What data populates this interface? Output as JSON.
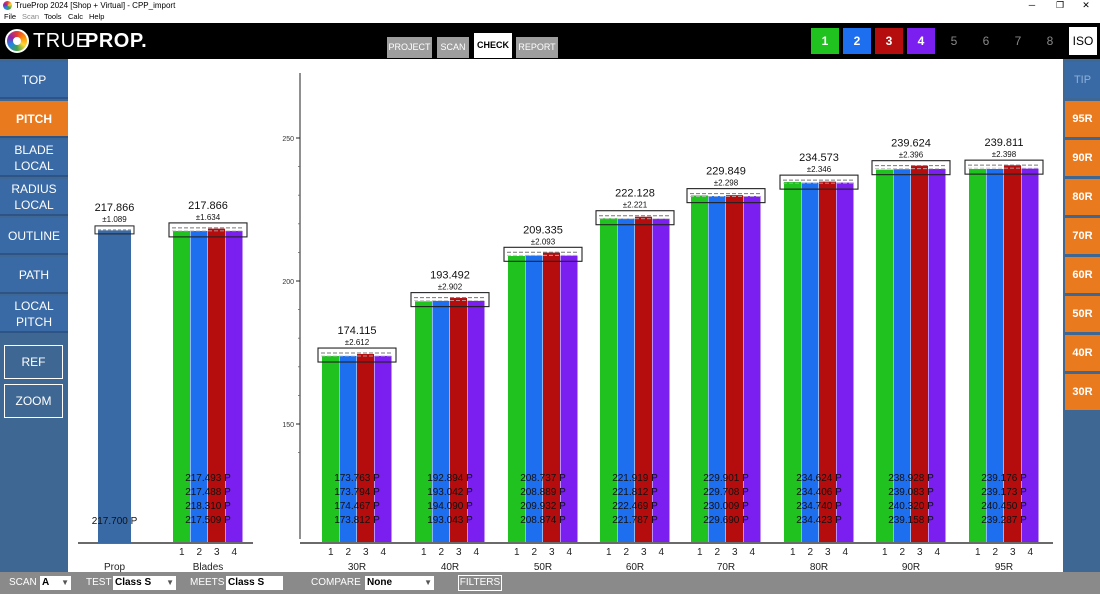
{
  "window": {
    "title": "TrueProp 2024 [Shop + Virtual] - CPP_import",
    "controls": [
      "─",
      "❐",
      "✕"
    ]
  },
  "menu": [
    "File",
    "Scan",
    "Tools",
    "Calc",
    "Help"
  ],
  "logo": {
    "part1": "TRUE",
    "part2": "PROP."
  },
  "tabs": [
    {
      "label": "PROJECT",
      "active": false
    },
    {
      "label": "SCAN",
      "active": false
    },
    {
      "label": "CHECK",
      "active": true
    },
    {
      "label": "REPORT",
      "active": false
    }
  ],
  "blade_buttons": [
    {
      "label": "1",
      "color": "#1fc21f",
      "on": true
    },
    {
      "label": "2",
      "color": "#1e6ff0",
      "on": true
    },
    {
      "label": "3",
      "color": "#b50d0d",
      "on": true
    },
    {
      "label": "4",
      "color": "#7b1ff0",
      "on": true
    },
    {
      "label": "5",
      "color": "#000000",
      "on": false
    },
    {
      "label": "6",
      "color": "#000000",
      "on": false
    },
    {
      "label": "7",
      "color": "#000000",
      "on": false
    },
    {
      "label": "8",
      "color": "#000000",
      "on": false
    }
  ],
  "iso_label": "ISO",
  "left_nav": [
    {
      "label": "TOP",
      "active": false
    },
    {
      "label": "PITCH",
      "active": true
    },
    {
      "label": "BLADE\nLOCAL",
      "active": false
    },
    {
      "label": "RADIUS\nLOCAL",
      "active": false
    },
    {
      "label": "OUTLINE",
      "active": false
    },
    {
      "label": "PATH",
      "active": false
    },
    {
      "label": "LOCAL\nPITCH",
      "active": false
    },
    {
      "label": "REF",
      "active": false
    },
    {
      "label": "ZOOM",
      "active": false
    }
  ],
  "right_nav": [
    {
      "label": "TIP",
      "on": false
    },
    {
      "label": "95R",
      "on": true
    },
    {
      "label": "90R",
      "on": true
    },
    {
      "label": "80R",
      "on": true
    },
    {
      "label": "70R",
      "on": true
    },
    {
      "label": "60R",
      "on": true
    },
    {
      "label": "50R",
      "on": true
    },
    {
      "label": "40R",
      "on": true
    },
    {
      "label": "30R",
      "on": true
    }
  ],
  "bottom": {
    "scan_label": "SCAN",
    "scan_value": "A",
    "test_label": "TEST",
    "test_value": "Class S",
    "meets_label": "MEETS",
    "meets_value": "Class S",
    "compare_label": "COMPARE",
    "compare_value": "None",
    "filters_label": "FILTERS"
  },
  "colors": {
    "blade1": "#1fc21f",
    "blade2": "#1e6ff0",
    "blade3": "#b50d0d",
    "blade4": "#7b1ff0",
    "prop_bar": "#3a6aa5",
    "active_orange": "#ea7a1e",
    "panel_blue": "#3a6aa5"
  },
  "chart_data": {
    "type": "bar",
    "y_ticks": [
      150,
      200,
      250
    ],
    "ylim": [
      133,
      260
    ],
    "prop": {
      "label": "Prop",
      "target": "217.866",
      "tolerance": "±1.089",
      "value": 217.7,
      "value_label": "217.700 P"
    },
    "groups": [
      {
        "label": "Blades",
        "target": "217.866",
        "tolerance": "±1.634",
        "values": [
          217.493,
          217.488,
          218.31,
          217.509
        ],
        "value_labels": [
          "217.493 P",
          "217.488 P",
          "218.310 P",
          "217.509 P"
        ]
      },
      {
        "label": "30R",
        "target": "174.115",
        "tolerance": "±2.612",
        "values": [
          173.763,
          173.794,
          174.467,
          173.812
        ],
        "value_labels": [
          "173.763 P",
          "173.794 P",
          "174.467 P",
          "173.812 P"
        ]
      },
      {
        "label": "40R",
        "target": "193.492",
        "tolerance": "±2.902",
        "values": [
          192.894,
          193.042,
          194.09,
          193.043
        ],
        "value_labels": [
          "192.894 P",
          "193.042 P",
          "194.090 P",
          "193.043 P"
        ]
      },
      {
        "label": "50R",
        "target": "209.335",
        "tolerance": "±2.093",
        "values": [
          208.737,
          208.889,
          209.932,
          208.874
        ],
        "value_labels": [
          "208.737 P",
          "208.889 P",
          "209.932 P",
          "208.874 P"
        ]
      },
      {
        "label": "60R",
        "target": "222.128",
        "tolerance": "±2.221",
        "values": [
          221.919,
          221.812,
          222.469,
          221.787
        ],
        "value_labels": [
          "221.919 P",
          "221.812 P",
          "222.469 P",
          "221.787 P"
        ]
      },
      {
        "label": "70R",
        "target": "229.849",
        "tolerance": "±2.298",
        "values": [
          229.901,
          229.708,
          230.009,
          229.69
        ],
        "value_labels": [
          "229.901 P",
          "229.708 P",
          "230.009 P",
          "229.690 P"
        ]
      },
      {
        "label": "80R",
        "target": "234.573",
        "tolerance": "±2.346",
        "values": [
          234.624,
          234.406,
          234.74,
          234.423
        ],
        "value_labels": [
          "234.624 P",
          "234.406 P",
          "234.740 P",
          "234.423 P"
        ]
      },
      {
        "label": "90R",
        "target": "239.624",
        "tolerance": "±2.396",
        "values": [
          238.928,
          239.083,
          240.32,
          239.158
        ],
        "value_labels": [
          "238.928 P",
          "239.083 P",
          "240.320 P",
          "239.158 P"
        ]
      },
      {
        "label": "95R",
        "target": "239.811",
        "tolerance": "±2.398",
        "values": [
          239.176,
          239.173,
          240.45,
          239.287
        ],
        "value_labels": [
          "239.176 P",
          "239.173 P",
          "240.450 P",
          "239.287 P"
        ]
      }
    ],
    "blade_numbers": [
      "1",
      "2",
      "3",
      "4"
    ]
  }
}
